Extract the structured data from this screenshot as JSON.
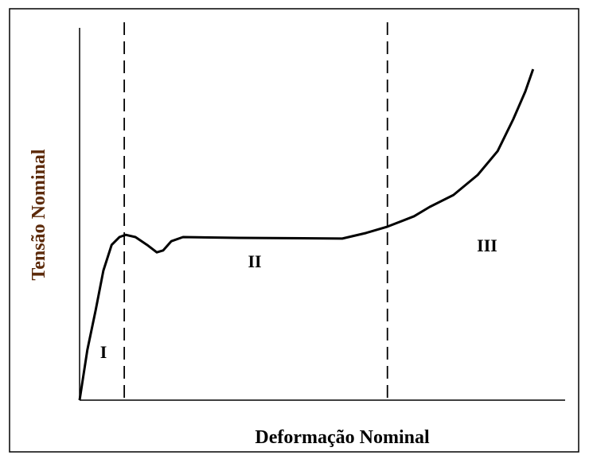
{
  "chart_data": {
    "type": "line",
    "x_label": "Deformação Nominal",
    "y_label": "Tensão Nominal",
    "x": [
      0,
      1.6,
      3.3,
      4.9,
      6.6,
      8.2,
      9.5,
      11.5,
      13.9,
      15.9,
      17.2,
      18.9,
      21.3,
      32.8,
      54.1,
      59.0,
      63.4,
      68.9,
      72.1,
      77.0,
      82.0,
      86.1,
      89.3,
      91.8,
      93.4
    ],
    "series": [
      {
        "color": "#000000",
        "values": [
          0,
          13.5,
          24.1,
          34.8,
          41.7,
          43.8,
          44.4,
          43.8,
          41.7,
          39.7,
          40.2,
          42.7,
          43.8,
          43.6,
          43.4,
          44.9,
          46.6,
          49.4,
          51.9,
          55.1,
          60.5,
          66.9,
          75.4,
          82.9,
          88.9
        ]
      }
    ],
    "boundaries": [
      9.2,
      63.4
    ],
    "regions": [
      "I",
      "II",
      "III"
    ],
    "xlim": [
      0,
      100
    ],
    "ylim": [
      0,
      100
    ]
  }
}
